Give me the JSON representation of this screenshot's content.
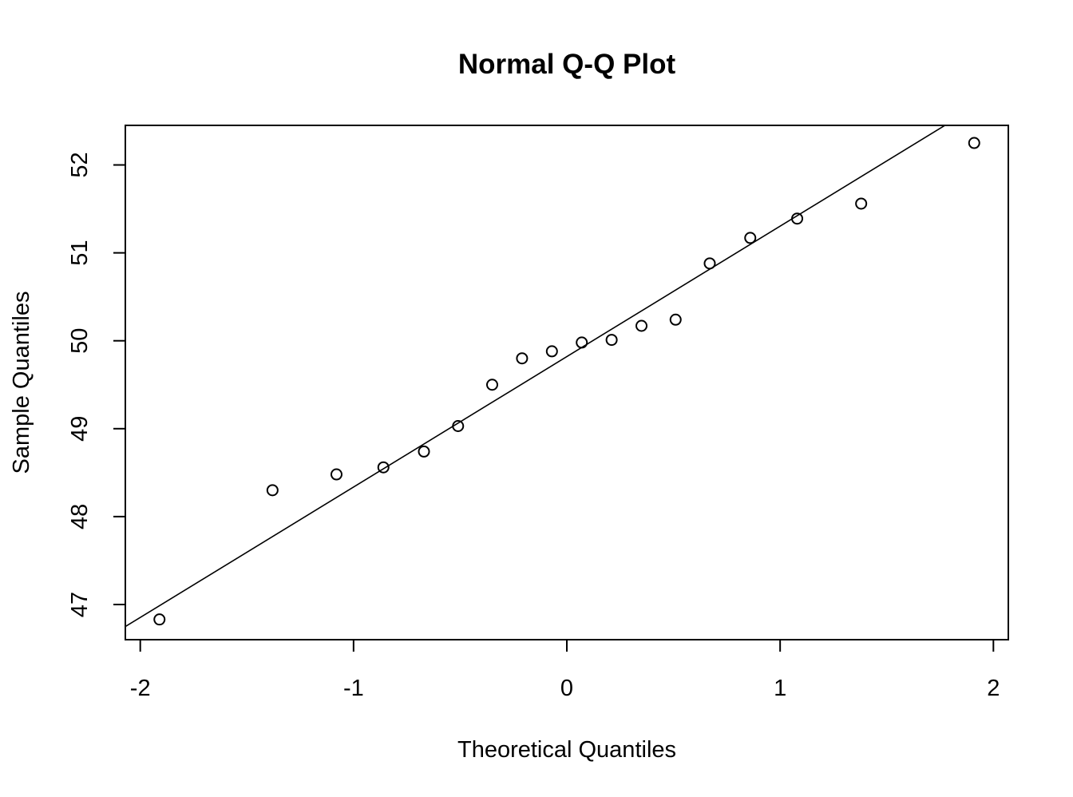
{
  "chart_data": {
    "type": "scatter",
    "title": "Normal Q-Q Plot",
    "xlabel": "Theoretical Quantiles",
    "ylabel": "Sample Quantiles",
    "xlim": [
      -2.07,
      2.07
    ],
    "ylim": [
      46.6,
      52.45
    ],
    "x_ticks": [
      -2,
      -1,
      0,
      1,
      2
    ],
    "x_tick_labels": [
      "-2",
      "-1",
      "0",
      "1",
      "2"
    ],
    "y_ticks": [
      47,
      48,
      49,
      50,
      51,
      52
    ],
    "y_tick_labels": [
      "47",
      "48",
      "49",
      "50",
      "51",
      "52"
    ],
    "grid": false,
    "x": [
      -1.91,
      -1.38,
      -1.08,
      -0.86,
      -0.67,
      -0.51,
      -0.35,
      -0.21,
      -0.07,
      0.07,
      0.21,
      0.35,
      0.51,
      0.67,
      0.86,
      1.08,
      1.38,
      1.91
    ],
    "y": [
      46.83,
      48.3,
      48.48,
      48.56,
      48.74,
      49.03,
      49.5,
      49.8,
      49.88,
      49.98,
      50.01,
      50.17,
      50.24,
      50.88,
      51.17,
      51.39,
      51.56,
      52.25
    ],
    "reference_line": {
      "intercept": 49.82,
      "slope": 1.4836
    }
  }
}
